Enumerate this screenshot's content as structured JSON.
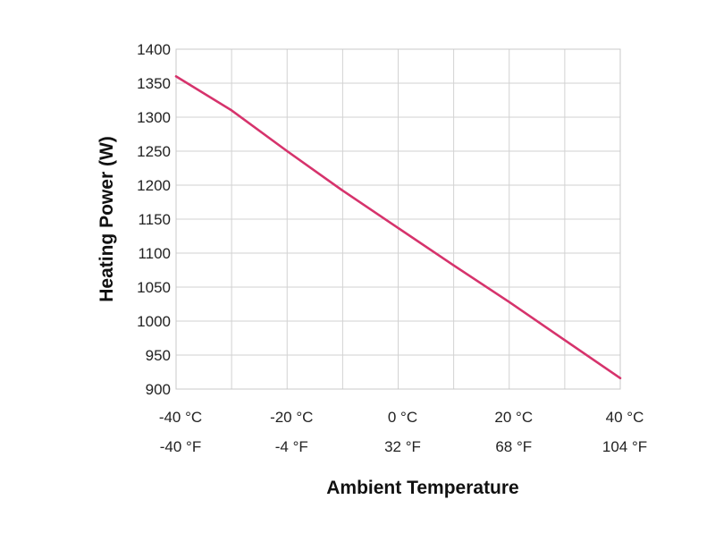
{
  "chart_data": {
    "type": "line",
    "title": "",
    "ylabel": "Heating Power (W)",
    "xlabel": "Ambient Temperature",
    "ylim": [
      900,
      1400
    ],
    "xlim": [
      -40,
      40
    ],
    "yticks": [
      900,
      950,
      1000,
      1050,
      1100,
      1150,
      1200,
      1250,
      1300,
      1350,
      1400
    ],
    "xticks": [
      {
        "value": -40,
        "label_c": "-40 °C",
        "label_f": "-40 °F"
      },
      {
        "value": -20,
        "label_c": "-20 °C",
        "label_f": "-4 °F"
      },
      {
        "value": 0,
        "label_c": "0 °C",
        "label_f": "32 °F"
      },
      {
        "value": 20,
        "label_c": "20 °C",
        "label_f": "68 °F"
      },
      {
        "value": 40,
        "label_c": "40 °C",
        "label_f": "104 °F"
      }
    ],
    "grid": true,
    "series": [
      {
        "color": "#d6336c",
        "x": [
          -40,
          -30,
          -20,
          -10,
          0,
          10,
          20,
          30,
          40
        ],
        "y": [
          1360,
          1310,
          1250,
          1192,
          1137,
          1082,
          1028,
          972,
          916
        ]
      }
    ]
  }
}
